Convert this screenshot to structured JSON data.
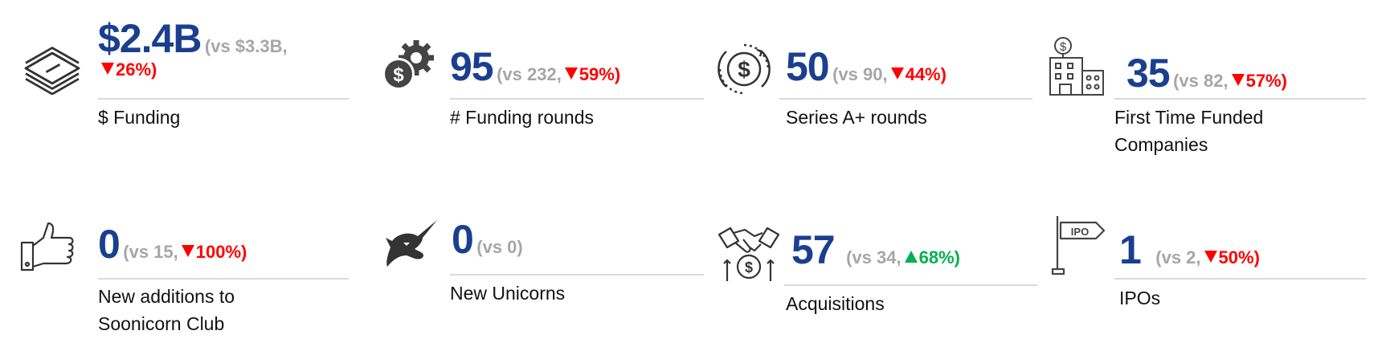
{
  "colors": {
    "value": "#1b3f8f",
    "compare": "#a6a6a6",
    "down": "#ff0000",
    "up": "#00b050",
    "divider": "#d9d9d9"
  },
  "cards": [
    {
      "icon": "money-stack-icon",
      "value": "$2.4B",
      "compare": "vs $3.3B,",
      "change": "26%",
      "direction": "down",
      "label": "$ Funding"
    },
    {
      "icon": "dollar-gear-icon",
      "value": "95",
      "compare": "vs 232,",
      "change": "59%",
      "direction": "down",
      "label": "# Funding rounds"
    },
    {
      "icon": "dollar-cycle-icon",
      "value": "50",
      "compare": "vs 90,",
      "change": "44%",
      "direction": "down",
      "label": "Series A+ rounds"
    },
    {
      "icon": "building-dollar-icon",
      "value": "35",
      "compare": "vs 82,",
      "change": "57%",
      "direction": "down",
      "label": "First Time Funded Companies"
    },
    {
      "icon": "thumbs-up-icon",
      "value": "0",
      "compare": "vs 15,",
      "change": "100%",
      "direction": "down",
      "label": "New additions to Soonicorn Club"
    },
    {
      "icon": "unicorn-icon",
      "value": "0",
      "compare": "vs 0",
      "change": "",
      "direction": "",
      "label": "New Unicorns"
    },
    {
      "icon": "handshake-dollar-icon",
      "value": "57",
      "compare": "vs 34,",
      "change": "68%",
      "direction": "up",
      "label": "Acquisitions"
    },
    {
      "icon": "ipo-signpost-icon",
      "value": "1",
      "compare": "vs 2,",
      "change": "50%",
      "direction": "down",
      "label": "IPOs"
    }
  ]
}
